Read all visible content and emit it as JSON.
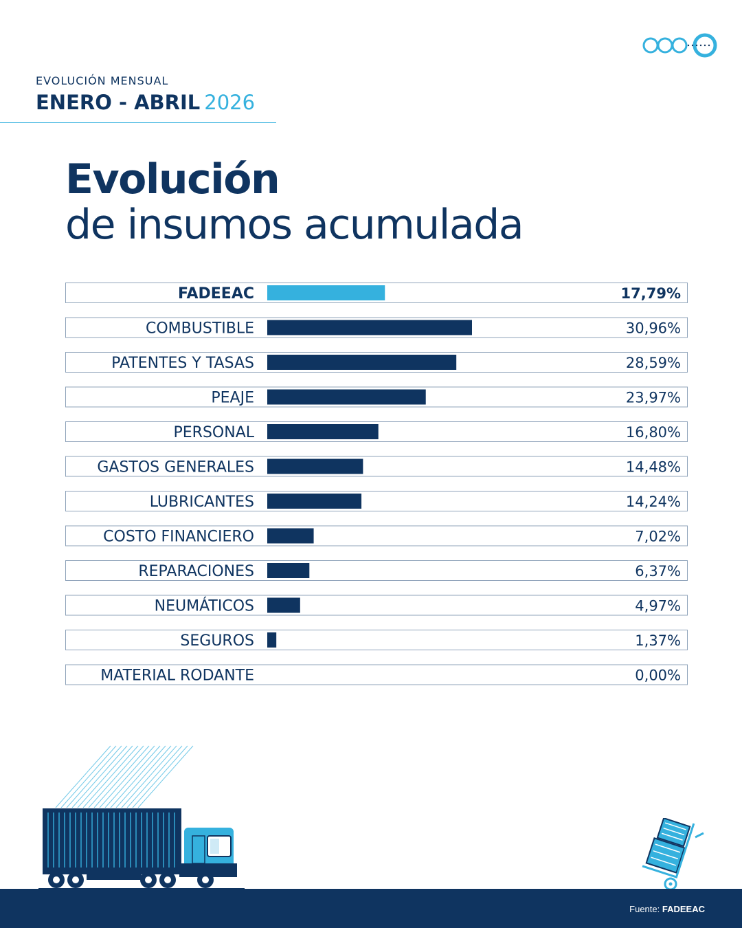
{
  "header": {
    "kicker": "EVOLUCIÓN MENSUAL",
    "period": "ENERO - ABRIL",
    "year": "2026"
  },
  "title": {
    "line1": "Evolución",
    "line2": "de insumos acumulada"
  },
  "colors": {
    "navy": "#0f3460",
    "accent": "#35b1de",
    "border": "#8fa3ba"
  },
  "chart_data": {
    "type": "bar",
    "orientation": "horizontal",
    "categories": [
      "FADEEAC",
      "COMBUSTIBLE",
      "PATENTES Y TASAS",
      "PEAJE",
      "PERSONAL",
      "GASTOS GENERALES",
      "LUBRICANTES",
      "COSTO FINANCIERO",
      "REPARACIONES",
      "NEUMÁTICOS",
      "SEGUROS",
      "MATERIAL RODANTE"
    ],
    "values": [
      17.79,
      30.96,
      28.59,
      23.97,
      16.8,
      14.48,
      14.24,
      7.02,
      6.37,
      4.97,
      1.37,
      0.0
    ],
    "labels": [
      "17,79%",
      "30,96%",
      "28,59%",
      "23,97%",
      "16,80%",
      "14,48%",
      "14,24%",
      "7,02%",
      "6,37%",
      "4,97%",
      "1,37%",
      "0,00%"
    ],
    "highlight": [
      "FADEEAC"
    ],
    "xlim": [
      0,
      31
    ],
    "title": "",
    "xlabel": "",
    "ylabel": ""
  },
  "footer": {
    "source_label": "Fuente:",
    "source_value": "FADEEAC"
  },
  "icons": [
    "logo-icon",
    "truck-icon",
    "hand-truck-icon"
  ]
}
